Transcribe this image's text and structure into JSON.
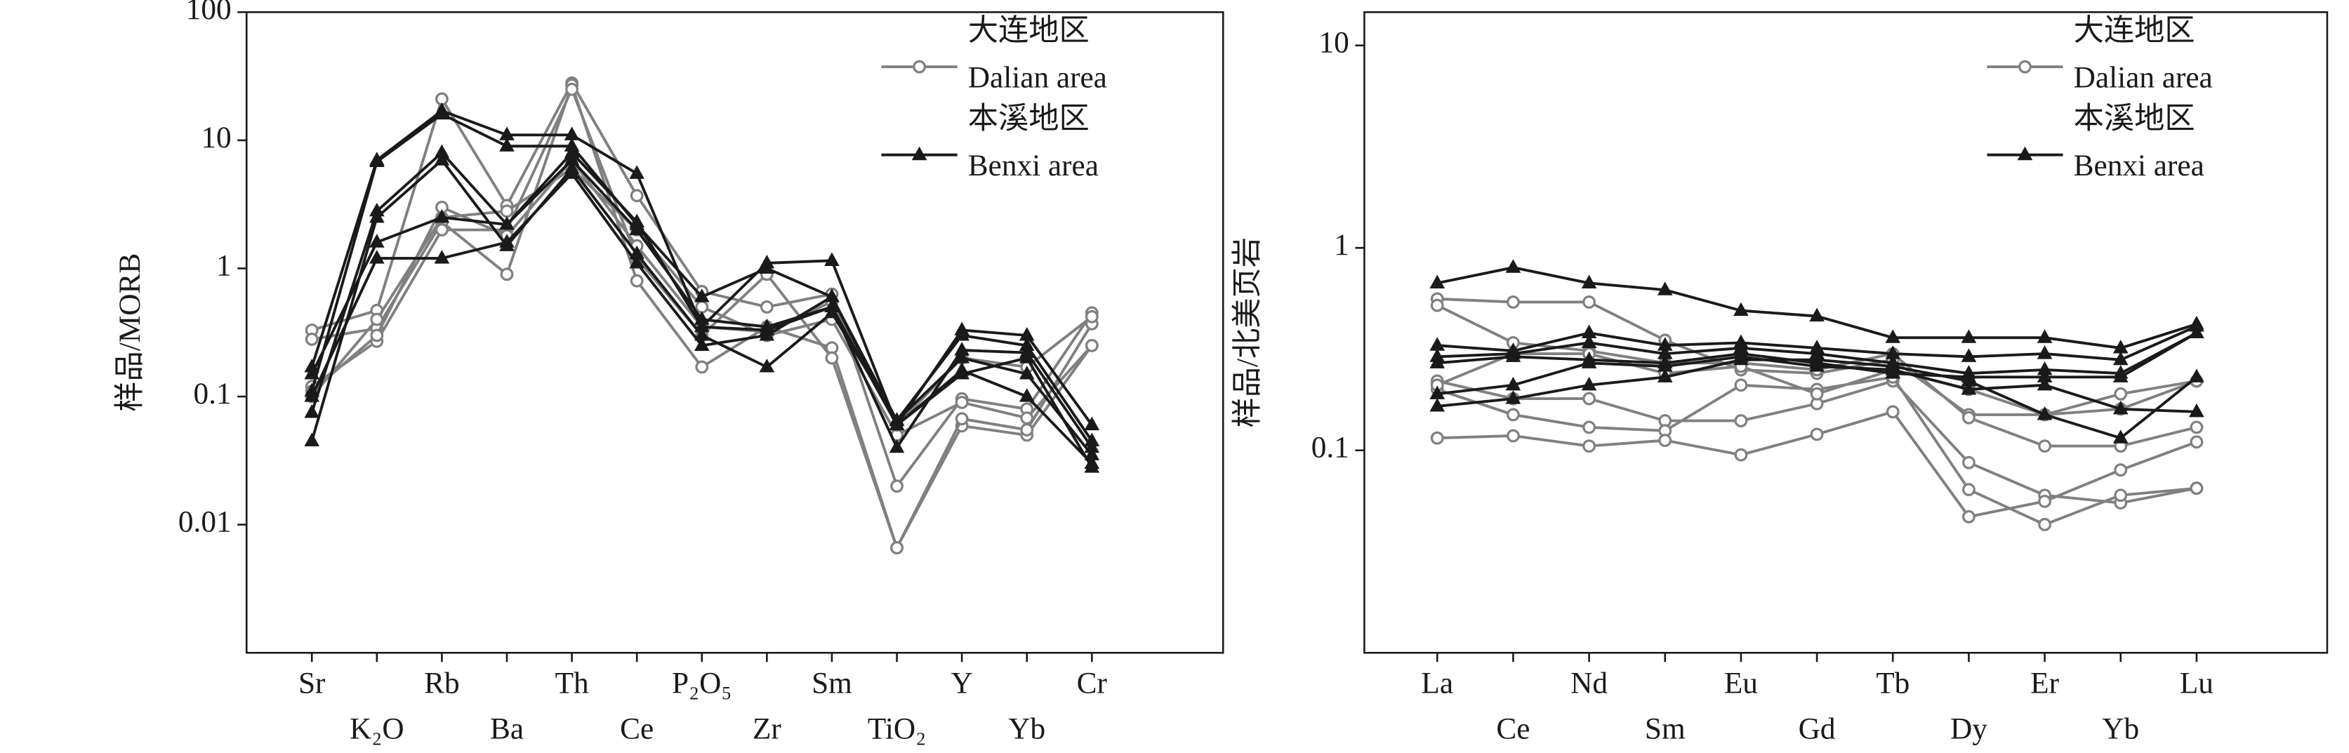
{
  "chart_data": [
    {
      "type": "line",
      "log_scale": true,
      "y_label": "样品/MORB",
      "categories": [
        "Sr",
        "K₂O",
        "Rb",
        "Ba",
        "Th",
        "Ce",
        "P₂O₅",
        "Zr",
        "Sm",
        "TiO₂",
        "Y",
        "Yb",
        "Cr"
      ],
      "ylim": [
        0.001,
        100
      ],
      "yticks": [
        0.01,
        0.1,
        1,
        10,
        100
      ],
      "series": [
        {
          "name": "大连地区",
          "name_en": "Dalian area",
          "color": "#808080",
          "marker": "circle",
          "samples": [
            [
              0.33,
              0.47,
              21,
              3.1,
              28,
              3.7,
              0.66,
              0.5,
              0.63,
              0.02,
              0.096,
              0.08,
              0.45
            ],
            [
              0.28,
              0.34,
              2.3,
              0.9,
              27,
              0.8,
              0.17,
              0.35,
              0.24,
              0.0066,
              0.059,
              0.05,
              0.25
            ],
            [
              0.12,
              0.27,
              2.0,
              2.0,
              25,
              1.2,
              0.3,
              0.9,
              0.2,
              0.0066,
              0.067,
              0.055,
              0.37
            ],
            [
              0.1,
              0.4,
              2.5,
              2.8,
              6,
              2.0,
              0.5,
              0.3,
              0.4,
              0.05,
              0.09,
              0.068,
              0.25
            ],
            [
              0.11,
              0.3,
              3.0,
              1.8,
              7,
              1.5,
              0.35,
              0.32,
              0.55,
              0.06,
              0.2,
              0.17,
              0.42
            ]
          ]
        },
        {
          "name": "本溪地区",
          "name_en": "Benxi area",
          "color": "#1a1a1a",
          "marker": "triangle",
          "samples": [
            [
              0.17,
              7,
              17,
              11,
              11,
              5.5,
              0.35,
              1.1,
              1.15,
              0.06,
              0.33,
              0.3,
              0.06
            ],
            [
              0.11,
              6.8,
              16,
              9,
              9,
              2.2,
              0.6,
              1.0,
              0.6,
              0.065,
              0.3,
              0.25,
              0.045
            ],
            [
              0.075,
              2.8,
              8,
              2.2,
              7,
              2.0,
              0.4,
              0.35,
              0.5,
              0.04,
              0.23,
              0.22,
              0.04
            ],
            [
              0.045,
              2.5,
              7,
              1.5,
              6,
              1.3,
              0.3,
              0.17,
              0.45,
              0.065,
              0.2,
              0.15,
              0.035
            ],
            [
              0.1,
              1.2,
              1.2,
              1.6,
              5.5,
              1.1,
              0.25,
              0.3,
              0.6,
              0.06,
              0.16,
              0.1,
              0.03
            ],
            [
              0.15,
              1.6,
              2.5,
              2.2,
              8,
              2.3,
              0.35,
              0.33,
              0.5,
              0.06,
              0.15,
              0.2,
              0.028
            ]
          ]
        }
      ]
    },
    {
      "type": "line",
      "log_scale": true,
      "y_label": "样品/北美页岩",
      "categories": [
        "La",
        "Ce",
        "Nd",
        "Sm",
        "Eu",
        "Gd",
        "Tb",
        "Dy",
        "Er",
        "Yb",
        "Lu"
      ],
      "ylim": [
        0.01,
        14.6
      ],
      "yticks": [
        0.1,
        1,
        10
      ],
      "series": [
        {
          "name": "大连地区",
          "name_en": "Dalian area",
          "color": "#808080",
          "marker": "circle",
          "samples": [
            [
              0.56,
              0.54,
              0.54,
              0.35,
              0.25,
              0.24,
              0.28,
              0.15,
              0.15,
              0.19,
              0.22
            ],
            [
              0.52,
              0.34,
              0.31,
              0.27,
              0.27,
              0.25,
              0.3,
              0.145,
              0.105,
              0.105,
              0.13
            ],
            [
              0.22,
              0.18,
              0.18,
              0.14,
              0.14,
              0.17,
              0.22,
              0.087,
              0.06,
              0.055,
              0.065
            ],
            [
              0.2,
              0.15,
              0.13,
              0.125,
              0.21,
              0.2,
              0.23,
              0.064,
              0.043,
              0.06,
              0.065
            ],
            [
              0.115,
              0.118,
              0.105,
              0.112,
              0.095,
              0.12,
              0.155,
              0.047,
              0.056,
              0.08,
              0.11
            ],
            [
              0.21,
              0.3,
              0.3,
              0.24,
              0.26,
              0.19,
              0.25,
              0.2,
              0.15,
              0.16,
              0.22
            ]
          ]
        },
        {
          "name": "本溪地区",
          "name_en": "Benxi area",
          "color": "#1a1a1a",
          "marker": "triangle",
          "samples": [
            [
              0.67,
              0.8,
              0.67,
              0.62,
              0.49,
              0.46,
              0.36,
              0.36,
              0.36,
              0.32,
              0.42
            ],
            [
              0.33,
              0.31,
              0.38,
              0.33,
              0.34,
              0.32,
              0.3,
              0.29,
              0.3,
              0.28,
              0.41
            ],
            [
              0.29,
              0.3,
              0.34,
              0.3,
              0.32,
              0.3,
              0.27,
              0.24,
              0.25,
              0.24,
              0.38
            ],
            [
              0.27,
              0.29,
              0.28,
              0.27,
              0.3,
              0.27,
              0.24,
              0.23,
              0.23,
              0.23,
              0.38
            ],
            [
              0.19,
              0.21,
              0.27,
              0.26,
              0.29,
              0.26,
              0.25,
              0.2,
              0.21,
              0.16,
              0.155
            ],
            [
              0.165,
              0.18,
              0.21,
              0.23,
              0.28,
              0.28,
              0.26,
              0.22,
              0.15,
              0.115,
              0.23
            ]
          ]
        }
      ]
    }
  ]
}
